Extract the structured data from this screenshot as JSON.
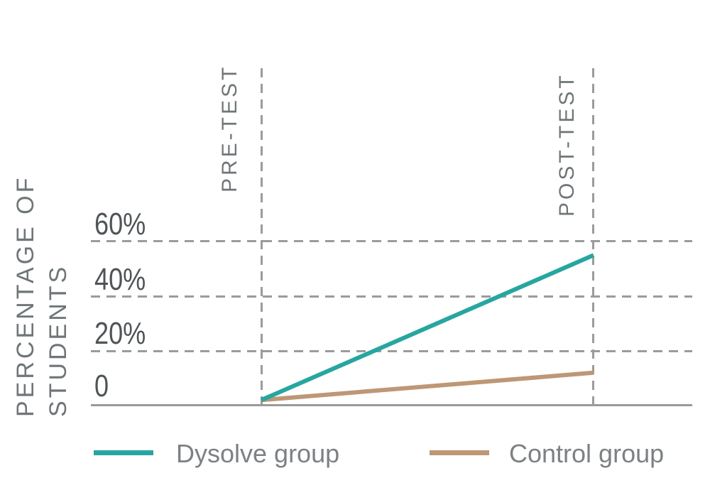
{
  "chart_data": {
    "type": "line",
    "title": "",
    "ylabel": "PERCENTAGE OF STUDENTS",
    "ylabel_lines": [
      "PERCENTAGE OF",
      "STUDENTS"
    ],
    "categories": [
      "PRE-TEST",
      "POST-TEST"
    ],
    "y_ticks": [
      "60%",
      "40%",
      "20%",
      "0"
    ],
    "y_tick_values": [
      60,
      40,
      20,
      0
    ],
    "ylim": [
      0,
      63
    ],
    "grid": "dashed",
    "legend_position": "bottom",
    "series": [
      {
        "name": "Dysolve group",
        "color": "#27A6A1",
        "values": [
          2,
          55
        ]
      },
      {
        "name": "Control group",
        "color": "#BE9775",
        "values": [
          2,
          12
        ]
      }
    ]
  },
  "colors": {
    "grid": "#9B9B9B",
    "axis": "#9A9A9A",
    "tick_label": "#4F5456",
    "axis_title": "#6F7678",
    "legend_text": "#7C8183",
    "background": "#FFFFFF"
  }
}
